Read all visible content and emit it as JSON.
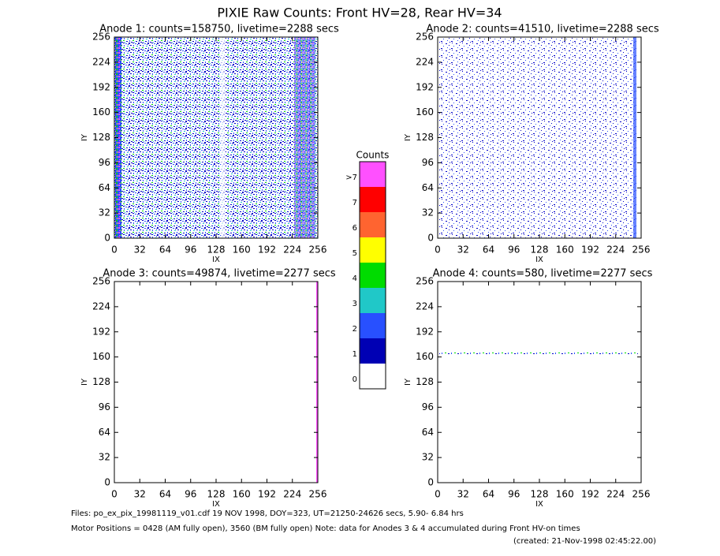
{
  "title": "PIXIE Raw Counts:  Front HV=28, Rear HV=34",
  "chart_data": [
    {
      "type": "heatmap",
      "title": "Anode 1: counts=158750, livetime=2288 secs",
      "x_label": "IX",
      "y_label": "IY",
      "xlim": [
        0,
        256
      ],
      "ylim": [
        0,
        256
      ],
      "xticks": [
        0,
        32,
        64,
        96,
        128,
        160,
        192,
        224,
        256
      ],
      "yticks": [
        0,
        32,
        64,
        96,
        128,
        160,
        192,
        224,
        256
      ]
    },
    {
      "type": "heatmap",
      "title": "Anode 2: counts=41510, livetime=2288 secs",
      "x_label": "IX",
      "y_label": "IY",
      "xlim": [
        0,
        256
      ],
      "ylim": [
        0,
        256
      ],
      "xticks": [
        0,
        32,
        64,
        96,
        128,
        160,
        192,
        224,
        256
      ],
      "yticks": [
        0,
        32,
        64,
        96,
        128,
        160,
        192,
        224,
        256
      ]
    },
    {
      "type": "heatmap",
      "title": "Anode 3: counts=49874, livetime=2277 secs",
      "x_label": "IX",
      "y_label": "IY",
      "xlim": [
        0,
        256
      ],
      "ylim": [
        0,
        256
      ],
      "xticks": [
        0,
        32,
        64,
        96,
        128,
        160,
        192,
        224,
        256
      ],
      "yticks": [
        0,
        32,
        64,
        96,
        128,
        160,
        192,
        224,
        256
      ]
    },
    {
      "type": "heatmap",
      "title": "Anode 4: counts=580, livetime=2277 secs",
      "x_label": "IX",
      "y_label": "IY",
      "xlim": [
        0,
        256
      ],
      "ylim": [
        0,
        256
      ],
      "xticks": [
        0,
        32,
        64,
        96,
        128,
        160,
        192,
        224,
        256
      ],
      "yticks": [
        0,
        32,
        64,
        96,
        128,
        160,
        192,
        224,
        256
      ]
    }
  ],
  "colorbar": {
    "title": "Counts",
    "labels": [
      "0",
      "1",
      "2",
      "3",
      "4",
      "5",
      "6",
      "7",
      ">7"
    ],
    "colors": [
      "#ffffff",
      "#0000b4",
      "#2850ff",
      "#20c8c8",
      "#00dc00",
      "#ffff00",
      "#ff6430",
      "#ff0000",
      "#ff50ff"
    ]
  },
  "footer": [
    "Files: po_ex_pix_19981119_v01.cdf    19 NOV 1998, DOY=323, UT=21250-24626 secs,  5.90- 6.84 hrs",
    "Motor Positions = 0428 (AM fully open), 3560 (BM fully open)    Note: data for Anodes 3 & 4 accumulated during Front HV-on times",
    "(created: 21-Nov-1998 02:45:22.00)"
  ]
}
